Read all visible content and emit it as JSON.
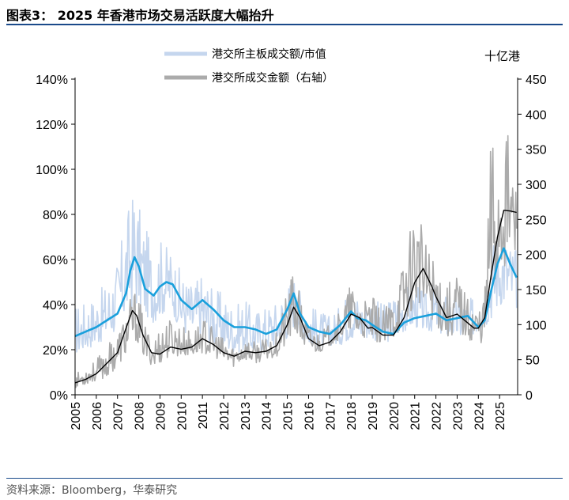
{
  "figure": {
    "title": "图表3：  2025 年香港市场交易活跃度大幅抬升",
    "source": "资料来源：Bloomberg，华泰研究"
  },
  "chart_data": {
    "type": "line",
    "x_ticks": [
      "2005",
      "2006",
      "2007",
      "2008",
      "2009",
      "2010",
      "2011",
      "2012",
      "2013",
      "2014",
      "2015",
      "2016",
      "2017",
      "2018",
      "2019",
      "2020",
      "2021",
      "2022",
      "2023",
      "2024",
      "2025"
    ],
    "x_range": [
      2005,
      2025.85
    ],
    "left_axis": {
      "ticks": [
        "0%",
        "20%",
        "40%",
        "60%",
        "80%",
        "100%",
        "120%",
        "140%"
      ],
      "range": [
        0,
        140
      ]
    },
    "right_axis": {
      "unit_label": "十亿港",
      "ticks": [
        "0",
        "50",
        "100",
        "150",
        "200",
        "250",
        "300",
        "350",
        "400",
        "450"
      ],
      "range": [
        0,
        450
      ]
    },
    "legend_position": "top-center",
    "colors": {
      "ratio_raw": "#c5d6ee",
      "ratio_ma": "#1aa0dc",
      "turnover_raw": "#ababab",
      "turnover_ma": "#000000"
    },
    "series": [
      {
        "name": "港交所主板成交额/市值",
        "axis": "left",
        "style": "raw",
        "range_band": [
          [
            2005.0,
            18,
            40
          ],
          [
            2005.5,
            20,
            42
          ],
          [
            2006.0,
            22,
            45
          ],
          [
            2006.5,
            25,
            50
          ],
          [
            2007.0,
            28,
            60
          ],
          [
            2007.4,
            35,
            80
          ],
          [
            2007.8,
            40,
            93
          ],
          [
            2008.0,
            38,
            85
          ],
          [
            2008.3,
            35,
            75
          ],
          [
            2008.7,
            32,
            65
          ],
          [
            2009.0,
            35,
            70
          ],
          [
            2009.5,
            38,
            65
          ],
          [
            2010.0,
            28,
            55
          ],
          [
            2010.5,
            25,
            50
          ],
          [
            2011.0,
            25,
            55
          ],
          [
            2011.5,
            22,
            48
          ],
          [
            2012.0,
            20,
            45
          ],
          [
            2012.5,
            18,
            40
          ],
          [
            2013.0,
            20,
            42
          ],
          [
            2013.5,
            18,
            38
          ],
          [
            2014.0,
            20,
            40
          ],
          [
            2014.5,
            22,
            42
          ],
          [
            2015.0,
            25,
            50
          ],
          [
            2015.3,
            30,
            55
          ],
          [
            2015.7,
            25,
            45
          ],
          [
            2016.0,
            22,
            40
          ],
          [
            2016.5,
            20,
            38
          ],
          [
            2017.0,
            22,
            35
          ],
          [
            2017.5,
            22,
            40
          ],
          [
            2018.0,
            25,
            50
          ],
          [
            2018.5,
            25,
            42
          ],
          [
            2019.0,
            25,
            45
          ],
          [
            2019.5,
            22,
            40
          ],
          [
            2020.0,
            25,
            45
          ],
          [
            2020.5,
            28,
            48
          ],
          [
            2021.0,
            30,
            50
          ],
          [
            2021.5,
            28,
            45
          ],
          [
            2022.0,
            28,
            50
          ],
          [
            2022.5,
            25,
            45
          ],
          [
            2023.0,
            25,
            45
          ],
          [
            2023.5,
            25,
            42
          ],
          [
            2024.0,
            28,
            45
          ],
          [
            2024.3,
            30,
            55
          ],
          [
            2024.7,
            35,
            70
          ],
          [
            2025.0,
            40,
            75
          ],
          [
            2025.4,
            40,
            70
          ],
          [
            2025.8,
            38,
            65
          ]
        ]
      },
      {
        "name": "港交所主板成交额/市值",
        "axis": "left",
        "style": "moving-average",
        "points": [
          [
            2005.0,
            26
          ],
          [
            2005.5,
            28
          ],
          [
            2006.0,
            30
          ],
          [
            2006.5,
            33
          ],
          [
            2007.0,
            36
          ],
          [
            2007.4,
            45
          ],
          [
            2007.6,
            55
          ],
          [
            2007.8,
            61
          ],
          [
            2008.0,
            57
          ],
          [
            2008.3,
            47
          ],
          [
            2008.7,
            44
          ],
          [
            2009.0,
            48
          ],
          [
            2009.3,
            50
          ],
          [
            2009.6,
            49
          ],
          [
            2010.0,
            42
          ],
          [
            2010.5,
            38
          ],
          [
            2011.0,
            42
          ],
          [
            2011.5,
            38
          ],
          [
            2012.0,
            33
          ],
          [
            2012.5,
            30
          ],
          [
            2013.0,
            30
          ],
          [
            2013.5,
            29
          ],
          [
            2014.0,
            27
          ],
          [
            2014.5,
            29
          ],
          [
            2015.0,
            38
          ],
          [
            2015.3,
            45
          ],
          [
            2015.6,
            36
          ],
          [
            2016.0,
            30
          ],
          [
            2016.5,
            28
          ],
          [
            2017.0,
            27
          ],
          [
            2017.5,
            31
          ],
          [
            2018.0,
            37
          ],
          [
            2018.3,
            34
          ],
          [
            2018.7,
            33
          ],
          [
            2019.0,
            31
          ],
          [
            2019.5,
            28
          ],
          [
            2020.0,
            27
          ],
          [
            2020.5,
            32
          ],
          [
            2021.0,
            34
          ],
          [
            2021.5,
            35
          ],
          [
            2022.0,
            36
          ],
          [
            2022.5,
            33
          ],
          [
            2023.0,
            34
          ],
          [
            2023.5,
            35
          ],
          [
            2024.0,
            30
          ],
          [
            2024.3,
            33
          ],
          [
            2024.6,
            46
          ],
          [
            2024.9,
            58
          ],
          [
            2025.2,
            65
          ],
          [
            2025.5,
            58
          ],
          [
            2025.8,
            52
          ]
        ]
      },
      {
        "name": "港交所成交金额（右轴）",
        "axis": "right",
        "style": "raw",
        "range_band": [
          [
            2005.0,
            10,
            30
          ],
          [
            2005.5,
            15,
            40
          ],
          [
            2006.0,
            20,
            50
          ],
          [
            2006.5,
            25,
            70
          ],
          [
            2007.0,
            40,
            90
          ],
          [
            2007.5,
            60,
            130
          ],
          [
            2007.8,
            80,
            150
          ],
          [
            2008.0,
            70,
            140
          ],
          [
            2008.3,
            50,
            100
          ],
          [
            2008.7,
            40,
            80
          ],
          [
            2009.0,
            45,
            100
          ],
          [
            2009.5,
            55,
            110
          ],
          [
            2010.0,
            55,
            100
          ],
          [
            2010.5,
            55,
            90
          ],
          [
            2011.0,
            60,
            110
          ],
          [
            2011.5,
            55,
            95
          ],
          [
            2012.0,
            45,
            80
          ],
          [
            2012.5,
            40,
            70
          ],
          [
            2013.0,
            50,
            80
          ],
          [
            2013.5,
            45,
            75
          ],
          [
            2014.0,
            50,
            80
          ],
          [
            2014.5,
            55,
            90
          ],
          [
            2015.0,
            70,
            150
          ],
          [
            2015.3,
            90,
            180
          ],
          [
            2015.7,
            70,
            130
          ],
          [
            2016.0,
            60,
            100
          ],
          [
            2016.5,
            60,
            90
          ],
          [
            2017.0,
            70,
            100
          ],
          [
            2017.5,
            80,
            120
          ],
          [
            2018.0,
            90,
            160
          ],
          [
            2018.5,
            80,
            130
          ],
          [
            2019.0,
            80,
            140
          ],
          [
            2019.5,
            70,
            120
          ],
          [
            2020.0,
            80,
            140
          ],
          [
            2020.5,
            100,
            200
          ],
          [
            2021.0,
            130,
            280
          ],
          [
            2021.5,
            120,
            220
          ],
          [
            2022.0,
            100,
            200
          ],
          [
            2022.5,
            80,
            160
          ],
          [
            2023.0,
            90,
            180
          ],
          [
            2023.5,
            80,
            140
          ],
          [
            2024.0,
            70,
            130
          ],
          [
            2024.3,
            80,
            150
          ],
          [
            2024.6,
            120,
            400
          ],
          [
            2024.9,
            150,
            380
          ],
          [
            2025.2,
            180,
            430
          ],
          [
            2025.5,
            200,
            350
          ],
          [
            2025.8,
            190,
            300
          ]
        ]
      },
      {
        "name": "港交所成交金额（右轴）",
        "axis": "right",
        "style": "moving-average",
        "points": [
          [
            2005.0,
            17
          ],
          [
            2005.5,
            22
          ],
          [
            2006.0,
            30
          ],
          [
            2006.5,
            45
          ],
          [
            2007.0,
            60
          ],
          [
            2007.4,
            95
          ],
          [
            2007.7,
            120
          ],
          [
            2007.9,
            113
          ],
          [
            2008.2,
            85
          ],
          [
            2008.6,
            60
          ],
          [
            2009.0,
            58
          ],
          [
            2009.5,
            68
          ],
          [
            2010.0,
            65
          ],
          [
            2010.5,
            68
          ],
          [
            2011.0,
            80
          ],
          [
            2011.5,
            72
          ],
          [
            2012.0,
            60
          ],
          [
            2012.5,
            55
          ],
          [
            2013.0,
            62
          ],
          [
            2013.5,
            60
          ],
          [
            2014.0,
            62
          ],
          [
            2014.5,
            70
          ],
          [
            2015.0,
            100
          ],
          [
            2015.3,
            125
          ],
          [
            2015.6,
            110
          ],
          [
            2016.0,
            80
          ],
          [
            2016.5,
            70
          ],
          [
            2017.0,
            75
          ],
          [
            2017.5,
            90
          ],
          [
            2018.0,
            115
          ],
          [
            2018.4,
            110
          ],
          [
            2018.8,
            95
          ],
          [
            2019.0,
            96
          ],
          [
            2019.5,
            85
          ],
          [
            2020.0,
            85
          ],
          [
            2020.5,
            110
          ],
          [
            2021.0,
            160
          ],
          [
            2021.4,
            180
          ],
          [
            2021.8,
            155
          ],
          [
            2022.0,
            140
          ],
          [
            2022.5,
            110
          ],
          [
            2023.0,
            115
          ],
          [
            2023.4,
            105
          ],
          [
            2023.8,
            95
          ],
          [
            2024.0,
            95
          ],
          [
            2024.3,
            110
          ],
          [
            2024.6,
            170
          ],
          [
            2024.9,
            225
          ],
          [
            2025.2,
            263
          ],
          [
            2025.5,
            262
          ],
          [
            2025.8,
            260
          ]
        ]
      }
    ]
  }
}
